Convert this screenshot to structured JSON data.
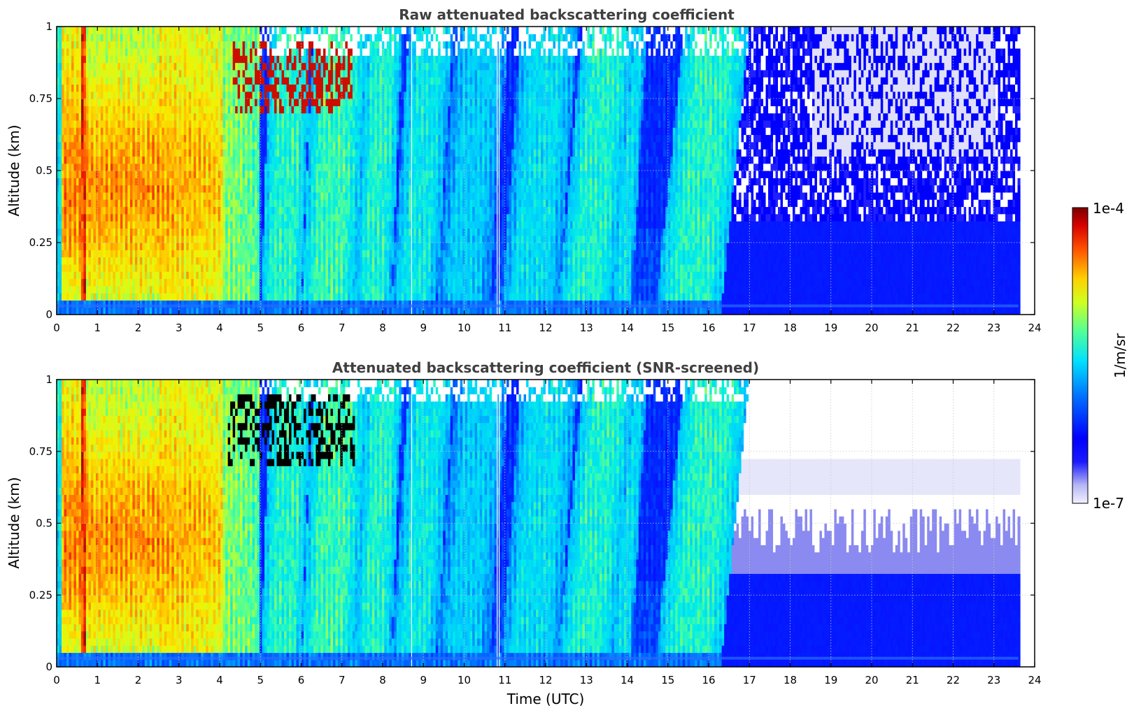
{
  "chart_data": [
    {
      "type": "heatmap",
      "title": "Raw attenuated backscattering coefficient",
      "xlabel": "",
      "ylabel": "Altitude (km)",
      "xlim": [
        0,
        24
      ],
      "ylim": [
        0,
        1
      ],
      "x_ticks": [
        "0",
        "1",
        "2",
        "3",
        "4",
        "5",
        "6",
        "7",
        "8",
        "9",
        "10",
        "11",
        "12",
        "13",
        "14",
        "15",
        "16",
        "17",
        "18",
        "19",
        "20",
        "21",
        "22",
        "23",
        "24"
      ],
      "y_ticks": [
        "0",
        "0.25",
        "0.5",
        "0.75",
        "1"
      ],
      "data_end_time": 23.6,
      "clear_sky_after": 16.3,
      "structures": [
        {
          "name": "dense aerosol/fog layer",
          "t_start": 0.0,
          "t_end": 2.5,
          "log_level": 0.78
        },
        {
          "name": "aerosol layer",
          "t_start": 2.5,
          "t_end": 4.1,
          "log_level": 0.66
        },
        {
          "name": "elevated high-signal patches",
          "t_start": 4.3,
          "t_end": 7.2,
          "alt_min": 0.68,
          "alt_max": 0.95,
          "log_level": 0.95
        },
        {
          "name": "decaying plumes",
          "t_start": 4.9,
          "t_end": 16.3,
          "log_level": 0.45
        }
      ],
      "gaps_utc": [
        8.7,
        10.8,
        10.85
      ]
    },
    {
      "type": "heatmap",
      "title": "Attenuated backscattering coefficient (SNR-screened)",
      "xlabel": "Time (UTC)",
      "ylabel": "Altitude (km)",
      "xlim": [
        0,
        24
      ],
      "ylim": [
        0,
        1
      ],
      "x_ticks": [
        "0",
        "1",
        "2",
        "3",
        "4",
        "5",
        "6",
        "7",
        "8",
        "9",
        "10",
        "11",
        "12",
        "13",
        "14",
        "15",
        "16",
        "17",
        "18",
        "19",
        "20",
        "21",
        "22",
        "23",
        "24"
      ],
      "y_ticks": [
        "0",
        "0.25",
        "0.5",
        "0.75",
        "1"
      ],
      "data_end_time": 23.6,
      "screened_top_after_16_3_km": [
        0.38,
        0.55
      ],
      "gaps_utc": [
        8.7,
        10.8,
        10.85
      ]
    }
  ],
  "colorbar": {
    "label": "1/m/sr",
    "max_label": "1e-4",
    "min_label": "1e-7",
    "colormap": "jet",
    "colors": [
      "#e8e8fa",
      "#c6c6f5",
      "#8a8af0",
      "#3a3af5",
      "#0000ff",
      "#0050ff",
      "#00a6ff",
      "#00e5f0",
      "#40ffb8",
      "#a0ff58",
      "#f0ff00",
      "#ffc800",
      "#ff7a00",
      "#ff2000",
      "#c00000",
      "#7f0000"
    ]
  }
}
